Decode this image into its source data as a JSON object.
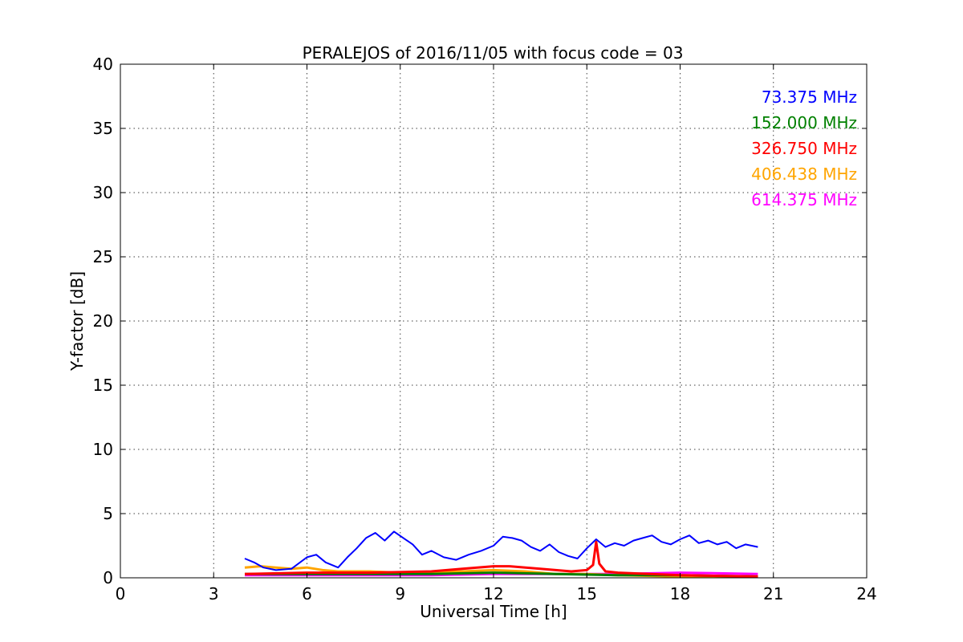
{
  "chart_data": {
    "type": "line",
    "title": "PERALEJOS of 2016/11/05 with focus code = 03",
    "xlabel": "Universal Time [h]",
    "ylabel": "Y-factor [dB]",
    "xlim": [
      0,
      24
    ],
    "ylim": [
      0,
      40
    ],
    "xticks": [
      0,
      3,
      6,
      9,
      12,
      15,
      18,
      21,
      24
    ],
    "yticks": [
      0,
      5,
      10,
      15,
      20,
      25,
      30,
      35,
      40
    ],
    "grid": true,
    "legend_position": "top-right",
    "series": [
      {
        "name": "73.375 MHz",
        "color": "#0000ff",
        "x": [
          4.0,
          4.3,
          4.6,
          5.0,
          5.5,
          6.0,
          6.3,
          6.6,
          7.0,
          7.3,
          7.6,
          7.9,
          8.2,
          8.5,
          8.8,
          9.1,
          9.4,
          9.7,
          10.0,
          10.4,
          10.8,
          11.2,
          11.6,
          12.0,
          12.3,
          12.6,
          12.9,
          13.2,
          13.5,
          13.8,
          14.1,
          14.4,
          14.7,
          15.0,
          15.3,
          15.6,
          15.9,
          16.2,
          16.5,
          16.8,
          17.1,
          17.4,
          17.7,
          18.0,
          18.3,
          18.6,
          18.9,
          19.2,
          19.5,
          19.8,
          20.1,
          20.5
        ],
        "y": [
          1.5,
          1.2,
          0.8,
          0.6,
          0.7,
          1.6,
          1.8,
          1.2,
          0.8,
          1.6,
          2.3,
          3.1,
          3.5,
          2.9,
          3.6,
          3.1,
          2.6,
          1.8,
          2.1,
          1.6,
          1.4,
          1.8,
          2.1,
          2.5,
          3.2,
          3.1,
          2.9,
          2.4,
          2.1,
          2.6,
          2.0,
          1.7,
          1.5,
          2.3,
          3.0,
          2.4,
          2.7,
          2.5,
          2.9,
          3.1,
          3.3,
          2.8,
          2.6,
          3.0,
          3.3,
          2.7,
          2.9,
          2.6,
          2.8,
          2.3,
          2.6,
          2.4
        ]
      },
      {
        "name": "152.000 MHz",
        "color": "#008000",
        "x": [
          4.0,
          6.0,
          8.0,
          10.0,
          12.0,
          14.0,
          16.0,
          18.0,
          20.5
        ],
        "y": [
          0.3,
          0.3,
          0.3,
          0.3,
          0.4,
          0.3,
          0.2,
          0.2,
          0.1
        ]
      },
      {
        "name": "326.750 MHz",
        "color": "#ff0000",
        "x": [
          4.0,
          6.0,
          8.0,
          10.0,
          11.0,
          12.0,
          12.5,
          13.5,
          14.5,
          15.0,
          15.2,
          15.3,
          15.4,
          15.6,
          16.0,
          18.0,
          20.5
        ],
        "y": [
          0.3,
          0.4,
          0.4,
          0.5,
          0.7,
          0.9,
          0.9,
          0.7,
          0.5,
          0.6,
          1.0,
          2.8,
          1.1,
          0.5,
          0.4,
          0.2,
          0.1
        ]
      },
      {
        "name": "406.438 MHz",
        "color": "#ffa500",
        "x": [
          4.0,
          4.5,
          5.0,
          5.5,
          6.0,
          6.5,
          7.0,
          8.0,
          9.0,
          10.0,
          11.0,
          12.0,
          13.0,
          14.0,
          15.0,
          16.0,
          18.0,
          20.5
        ],
        "y": [
          0.8,
          0.9,
          0.8,
          0.7,
          0.8,
          0.6,
          0.5,
          0.5,
          0.4,
          0.4,
          0.5,
          0.6,
          0.5,
          0.3,
          0.3,
          0.2,
          0.1,
          0.1
        ]
      },
      {
        "name": "614.375 MHz",
        "color": "#ff00ff",
        "x": [
          4.0,
          6.0,
          8.0,
          10.0,
          12.0,
          14.0,
          16.0,
          18.0,
          20.5
        ],
        "y": [
          0.2,
          0.2,
          0.2,
          0.2,
          0.3,
          0.3,
          0.3,
          0.4,
          0.3
        ]
      }
    ]
  }
}
